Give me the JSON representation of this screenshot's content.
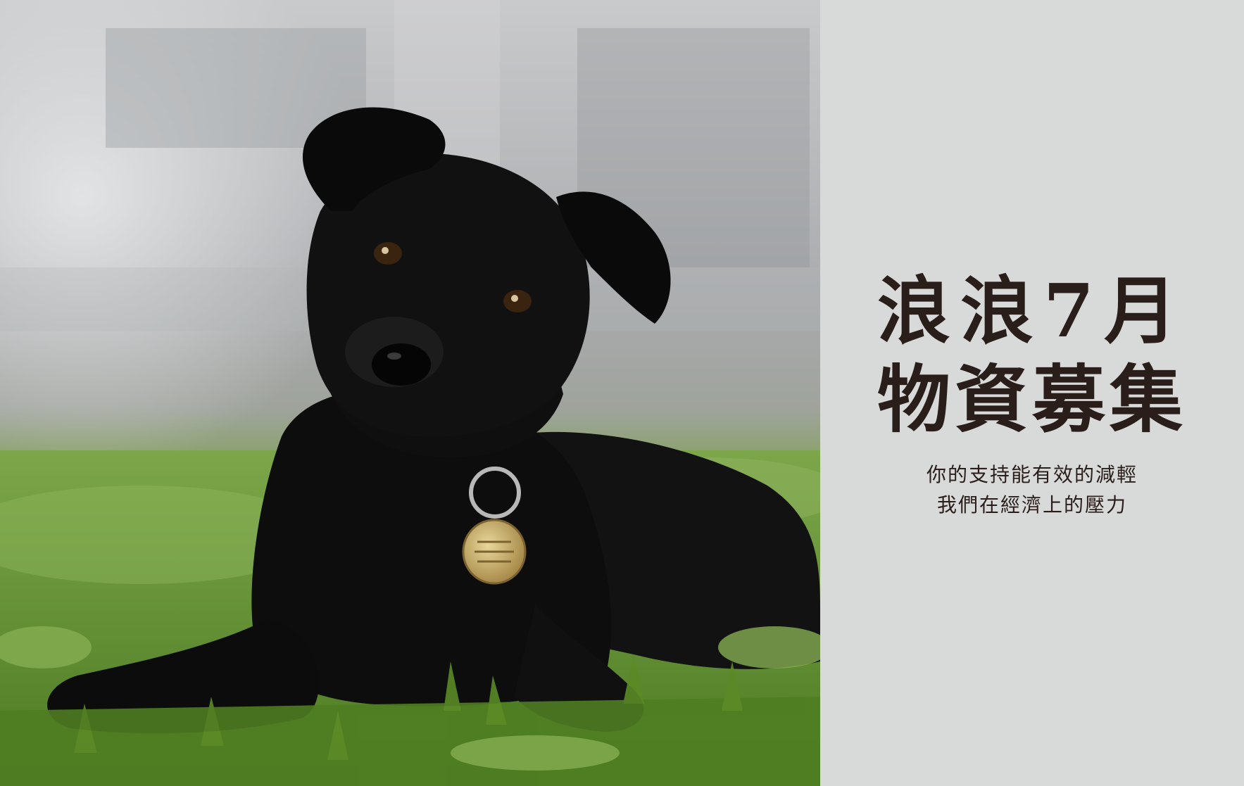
{
  "photo": {
    "subject": "dog-photo"
  },
  "poster": {
    "title_line1": "浪浪7月",
    "title_line2": "物資募集",
    "subtitle_line1": "你的支持能有效的減輕",
    "subtitle_line2": "我們在經濟上的壓力"
  },
  "colors": {
    "panel_background": "#d8d9d9",
    "text": "#2a1e1a",
    "grass": "#6f9a3b"
  }
}
